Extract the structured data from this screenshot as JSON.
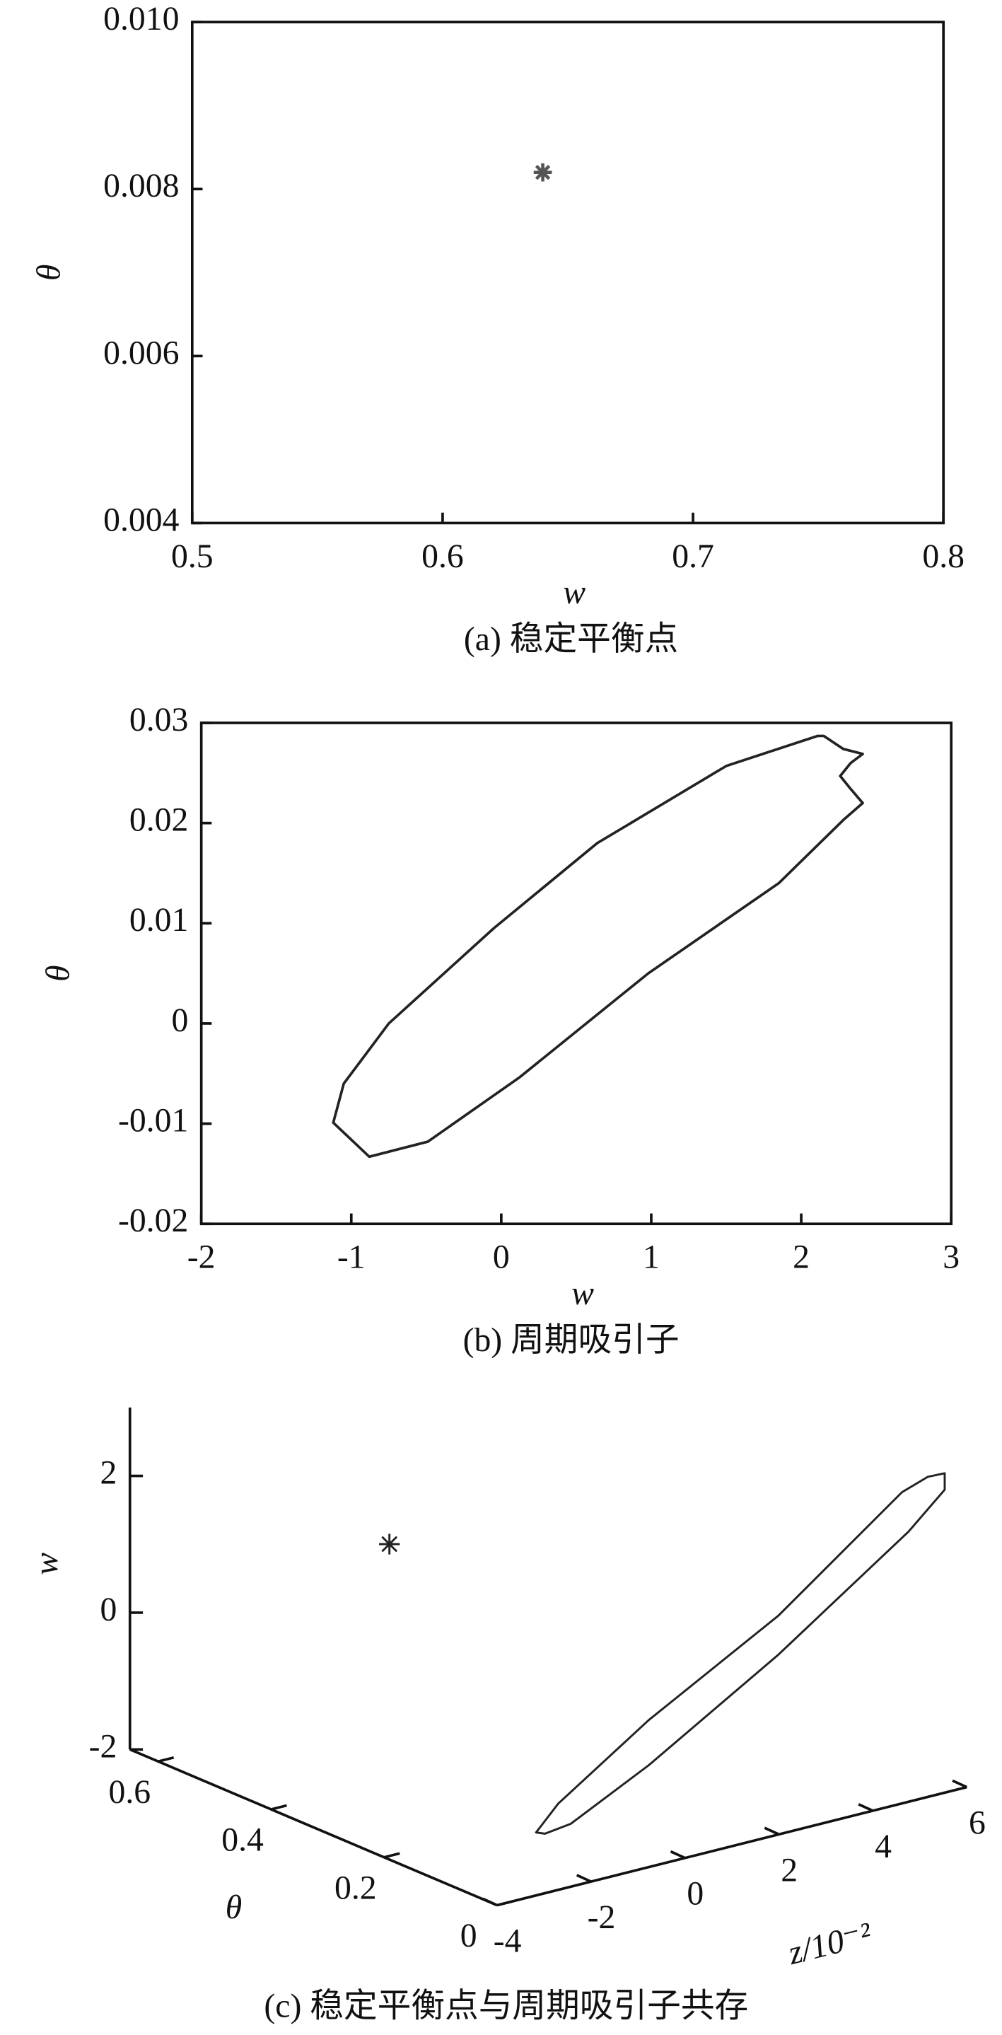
{
  "chart_data": [
    {
      "type": "scatter",
      "color": "#555555",
      "x": [
        0.64
      ],
      "values": [
        0.0082
      ],
      "xlim": [
        0.5,
        0.8
      ],
      "xticks": [
        0.5,
        0.6,
        0.7,
        0.8
      ],
      "ylim": [
        0.004,
        0.01
      ],
      "yticks": [
        0.004,
        0.006,
        0.008,
        {
          "value": 0.01,
          "label": "0.010"
        }
      ],
      "xlabel": "w",
      "ylabel": "θ",
      "caption": "(a) 稳定平衡点"
    },
    {
      "type": "line",
      "color": "#222222",
      "x": [
        -1.12,
        -0.88,
        -0.49,
        0.12,
        0.98,
        1.85,
        2.28,
        2.41,
        2.33,
        2.26,
        2.33,
        2.41,
        2.28,
        2.15,
        2.11,
        1.5,
        0.64,
        -0.05,
        -0.75,
        -1.05
      ],
      "values": [
        -0.0099,
        -0.0133,
        -0.0118,
        -0.0054,
        0.005,
        0.014,
        0.0203,
        0.022,
        0.0234,
        0.0247,
        0.026,
        0.0269,
        0.0274,
        0.0287,
        0.0287,
        0.0257,
        0.018,
        0.0095,
        0.0,
        -0.006
      ],
      "xlim": [
        -2,
        3
      ],
      "xticks": [
        -2,
        -1,
        0,
        1,
        2,
        3
      ],
      "ylim": [
        -0.02,
        0.03
      ],
      "yticks": [
        -0.02,
        -0.01,
        0,
        0.01,
        0.02,
        0.03
      ],
      "xlabel": "w",
      "ylabel": "θ",
      "caption": "(b) 周期吸引子"
    },
    {
      "type": "scatter3d",
      "color": "#222222",
      "point": {
        "theta": 0.544,
        "z": 0.25,
        "w": 0.64
      },
      "loop": {
        "theta": [
          0,
          0,
          0,
          0,
          0,
          0,
          0,
          0,
          0,
          0,
          0,
          0,
          0
        ],
        "z": [
          -3.17,
          -2.7,
          -0.77,
          1.99,
          4.62,
          5.17,
          5.53,
          5.53,
          4.76,
          1.99,
          -0.77,
          -2.43,
          -2.98
        ],
        "w": [
          -1.08,
          -0.74,
          0.15,
          1.2,
          2.55,
          2.68,
          2.67,
          2.43,
          1.95,
          0.63,
          -0.51,
          -1.08,
          -1.13
        ]
      },
      "theta_lim": [
        0,
        0.65
      ],
      "theta_ticks": [
        0,
        0.2,
        0.4,
        0.6
      ],
      "zlim": [
        -4,
        6
      ],
      "zticks": [
        -4,
        -2,
        0,
        2,
        4,
        6
      ],
      "wlim": [
        -2,
        3
      ],
      "wticks": [
        -2,
        0,
        2
      ],
      "theta_label": "θ",
      "z_label": "z/10⁻²",
      "w_label": "w",
      "caption": "(c) 稳定平衡点与周期吸引子共存"
    }
  ]
}
